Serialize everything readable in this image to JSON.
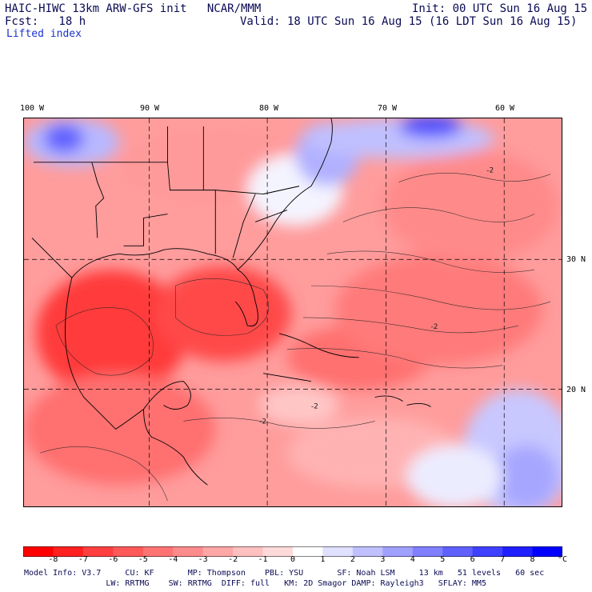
{
  "header": {
    "model": "HAIC-HIWC 13km ARW-GFS init   NCAR/MMM",
    "init": "Init: 00 UTC Sun 16 Aug 15",
    "fcst": "Fcst:   18 h",
    "valid": "Valid: 18 UTC Sun 16 Aug 15 (16 LDT Sun 16 Aug 15)",
    "field": "Lifted index"
  },
  "map": {
    "lon_labels": [
      "100 W",
      "90 W",
      "80 W",
      "70 W",
      "60 W"
    ],
    "lat_labels": [
      "30 N",
      "20 N"
    ],
    "contour_label": "-2"
  },
  "colorbar": {
    "ticks": [
      "-8",
      "-7",
      "-6",
      "-5",
      "-4",
      "-3",
      "-2",
      "-1",
      "0",
      "1",
      "2",
      "3",
      "4",
      "5",
      "6",
      "7",
      "8"
    ],
    "unit": "°C",
    "colors": [
      "#ff0000",
      "#ff2020",
      "#ff3f3f",
      "#ff5959",
      "#ff7373",
      "#ff8c8c",
      "#ffa6a6",
      "#ffc0c0",
      "#ffdada",
      "#ffffff",
      "#e0e0ff",
      "#c0c0ff",
      "#a0a0ff",
      "#8080ff",
      "#6060ff",
      "#4040ff",
      "#2020ff",
      "#0000ff"
    ]
  },
  "info": {
    "line1": "Model Info: V3.7     CU: KF       MP: Thompson    PBL: YSU       SF: Noah LSM     13 km   51 levels   60 sec",
    "line2": "                 LW: RRTMG    SW: RRTMG  DIFF: full   KM: 2D Smagor DAMP: Rayleigh3   SFLAY: MM5"
  }
}
